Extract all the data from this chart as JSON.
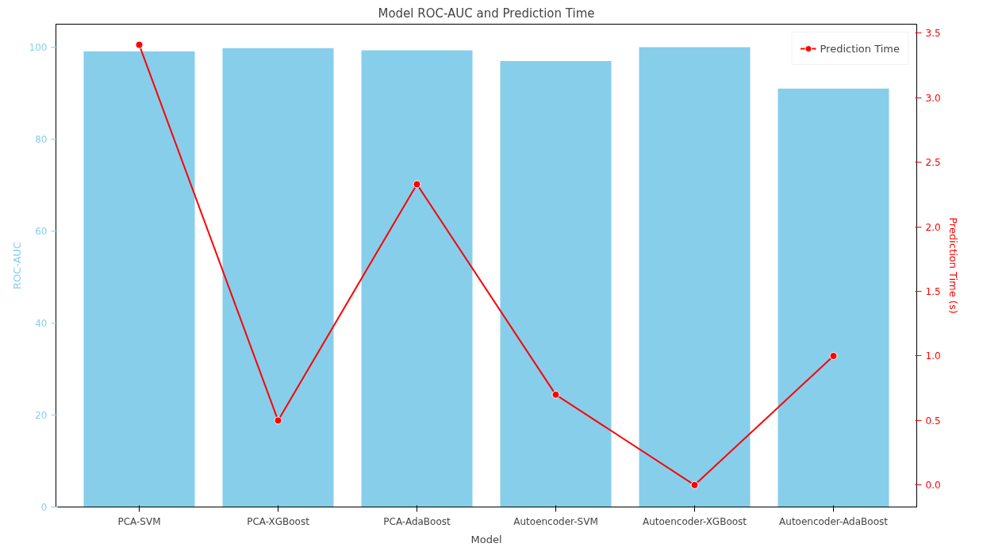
{
  "chart_data": {
    "type": "bar",
    "title": "Model ROC-AUC and Prediction Time",
    "xlabel": "Model",
    "ylabel": "ROC-AUC",
    "y2label": "Prediction Time (s)",
    "categories": [
      "PCA-SVM",
      "PCA-XGBoost",
      "PCA-AdaBoost",
      "Autoencoder-SVM",
      "Autoencoder-XGBoost",
      "Autoencoder-AdaBoost"
    ],
    "series": [
      {
        "color": "#87ceeb",
        "values": [
          99.1,
          99.8,
          99.3,
          97.0,
          100.0,
          91.0
        ]
      },
      {
        "type": "line",
        "name": "Prediction Time",
        "color": "#ff0000",
        "axis": "y2",
        "marker": "circle",
        "line_style": "solid",
        "values": [
          3.41,
          0.5,
          2.33,
          0.7,
          0.0,
          1.0
        ]
      }
    ],
    "ylim": [
      0,
      105
    ],
    "yticks": [
      0,
      20,
      40,
      60,
      80,
      100
    ],
    "y2lim": [
      -0.17,
      3.57
    ],
    "y2ticks": [
      {
        "value": 0,
        "label": "0.0"
      },
      {
        "value": 0.5,
        "label": "0.5"
      },
      {
        "value": 1,
        "label": "1.0"
      },
      {
        "value": 1.5,
        "label": "1.5"
      },
      {
        "value": 2,
        "label": "2.0"
      },
      {
        "value": 2.5,
        "label": "2.5"
      },
      {
        "value": 3,
        "label": "3.0"
      },
      {
        "value": 3.5,
        "label": "3.5"
      }
    ],
    "grid": false,
    "legend": "top right"
  }
}
